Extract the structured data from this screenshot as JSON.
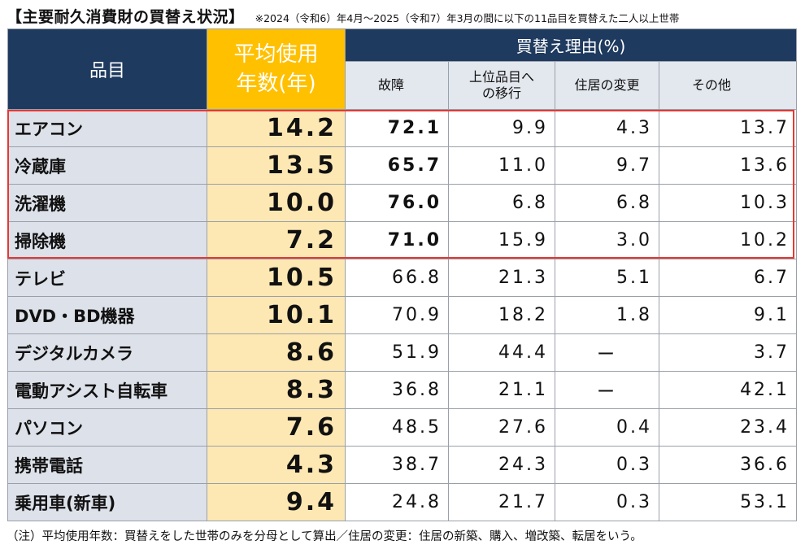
{
  "title": "【主要耐久消費財の買替え状況】",
  "note": "※2024（令和6）年4月～2025（令和7）年3月の間に以下の11品目を買替えた二人以上世帯",
  "headers": {
    "item": "品目",
    "years_line1": "平均使用",
    "years_line2": "年数(年)",
    "reasons": "買替え理由(%)",
    "breakdown": "故障",
    "upgrade_line1": "上位品目へ",
    "upgrade_line2": "の移行",
    "relocation": "住居の変更",
    "other": "その他"
  },
  "rows": [
    {
      "item": "エアコン",
      "years": "14.2",
      "breakdown": "72.1",
      "upgrade": "9.9",
      "relocation": "4.3",
      "other": "13.7"
    },
    {
      "item": "冷蔵庫",
      "years": "13.5",
      "breakdown": "65.7",
      "upgrade": "11.0",
      "relocation": "9.7",
      "other": "13.6"
    },
    {
      "item": "洗濯機",
      "years": "10.0",
      "breakdown": "76.0",
      "upgrade": "6.8",
      "relocation": "6.8",
      "other": "10.3"
    },
    {
      "item": "掃除機",
      "years": "7.2",
      "breakdown": "71.0",
      "upgrade": "15.9",
      "relocation": "3.0",
      "other": "10.2"
    },
    {
      "item": "テレビ",
      "years": "10.5",
      "breakdown": "66.8",
      "upgrade": "21.3",
      "relocation": "5.1",
      "other": "6.7"
    },
    {
      "item": "DVD・BD機器",
      "years": "10.1",
      "breakdown": "70.9",
      "upgrade": "18.2",
      "relocation": "1.8",
      "other": "9.1"
    },
    {
      "item": "デジタルカメラ",
      "years": "8.6",
      "breakdown": "51.9",
      "upgrade": "44.4",
      "relocation": "ー",
      "other": "3.7"
    },
    {
      "item": "電動アシスト自転車",
      "years": "8.3",
      "breakdown": "36.8",
      "upgrade": "21.1",
      "relocation": "ー",
      "other": "42.1"
    },
    {
      "item": "パソコン",
      "years": "7.6",
      "breakdown": "48.5",
      "upgrade": "27.6",
      "relocation": "0.4",
      "other": "23.4"
    },
    {
      "item": "携帯電話",
      "years": "4.3",
      "breakdown": "38.7",
      "upgrade": "24.3",
      "relocation": "0.3",
      "other": "36.6"
    },
    {
      "item": "乗用車(新車)",
      "years": "9.4",
      "breakdown": "24.8",
      "upgrade": "21.7",
      "relocation": "0.3",
      "other": "53.1"
    }
  ],
  "footnote": "（注）平均使用年数：買替えをした世帯のみを分母として算出／住居の変更：住居の新築、購入、増改築、転居をいう。",
  "colors": {
    "header_dark": "#1f3a5f",
    "header_yellow": "#ffc000",
    "years_cell": "#fde8b3",
    "item_cell": "#dde1ea",
    "highlight_border": "#e53935"
  }
}
